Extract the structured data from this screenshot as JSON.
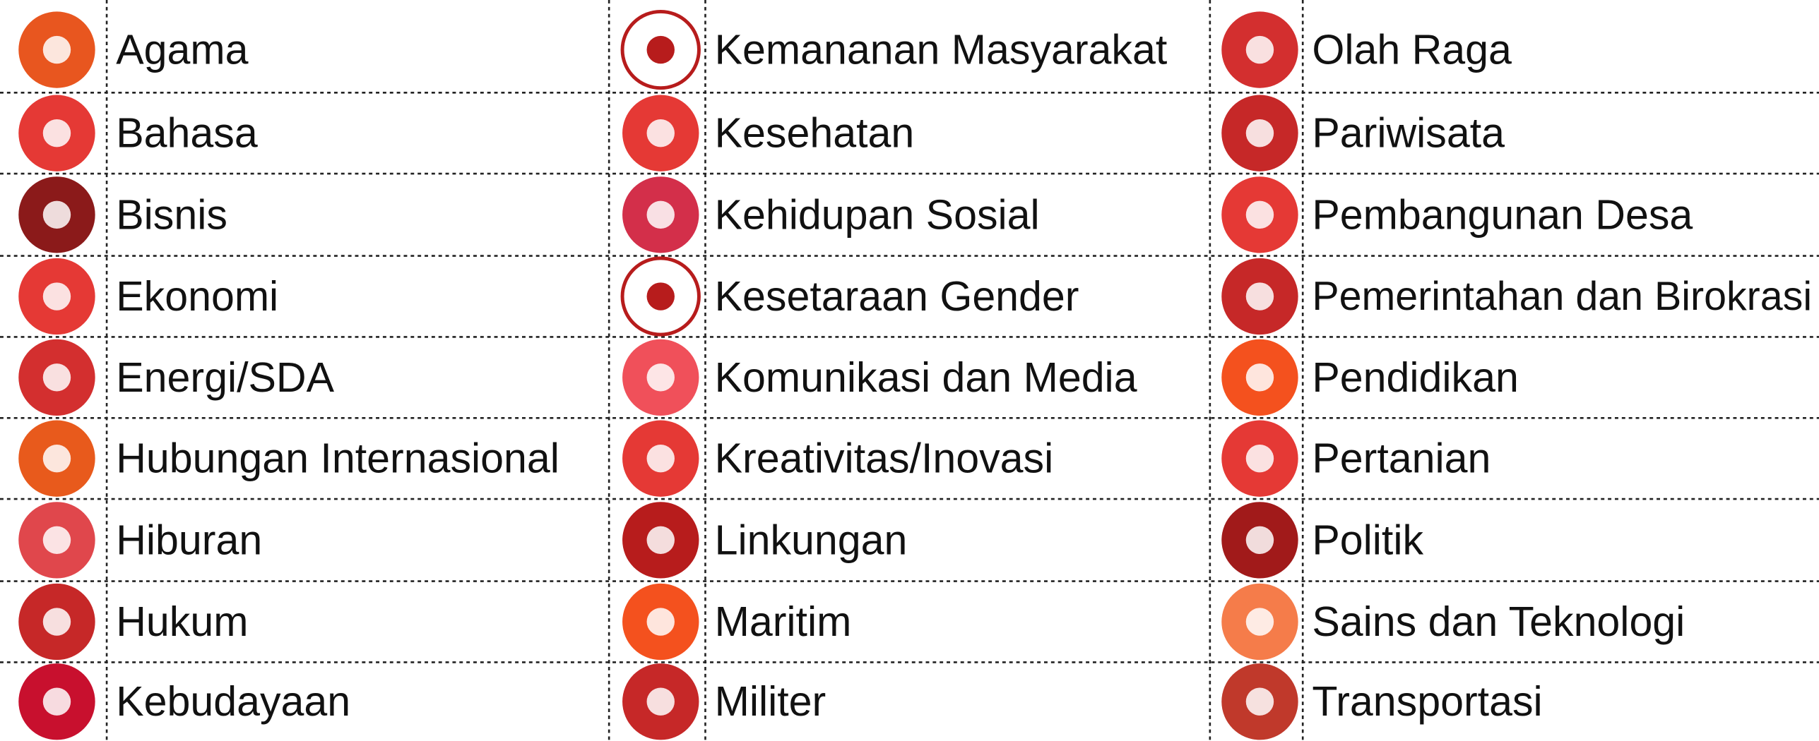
{
  "columns": [
    [
      "Agama",
      "Bahasa",
      "Bisnis",
      "Ekonomi",
      "Energi/SDA",
      "Hubungan Internasional",
      "Hiburan",
      "Hukum",
      "Kebudayaan"
    ],
    [
      "Kemananan Masyarakat",
      "Kesehatan",
      "Kehidupan Sosial",
      "Kesetaraan Gender",
      "Komunikasi dan Media",
      "Kreativitas/Inovasi",
      "Linkungan",
      "Maritim",
      "Militer"
    ],
    [
      "Olah Raga",
      "Pariwisata",
      "Pembangunan Desa",
      "Pemerintahan dan Birokrasi",
      "Pendidikan",
      "Pertanian",
      "Politik",
      "Sains dan Teknologi",
      "Transportasi"
    ]
  ]
}
